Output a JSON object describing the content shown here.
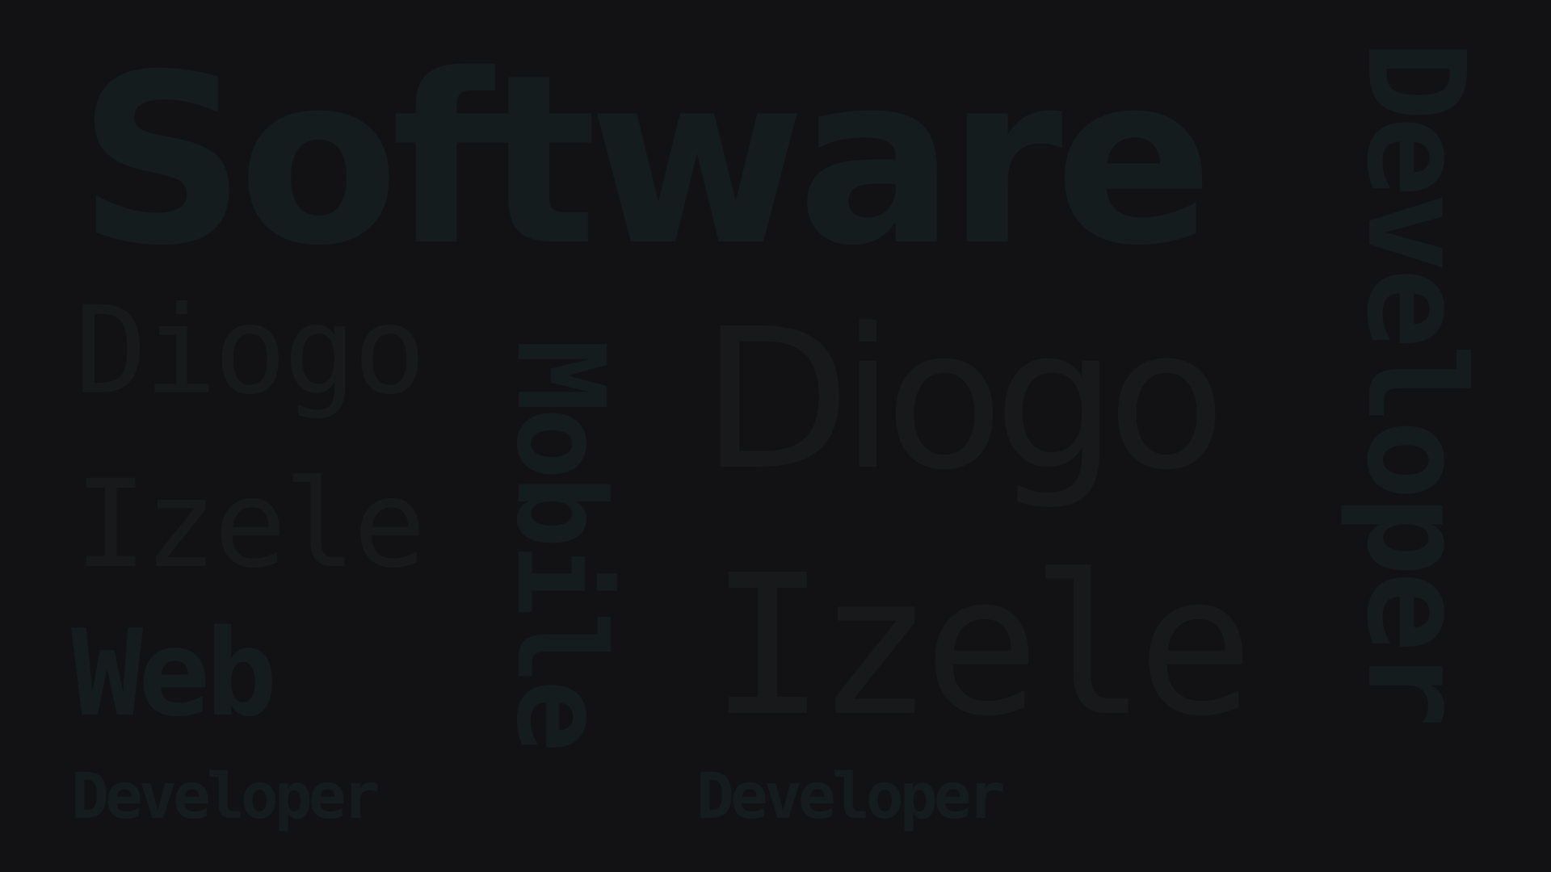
{
  "words": {
    "software": "Software",
    "diogo_small": "Diogo",
    "izele_small": "Izele",
    "web": "Web",
    "developer_left": "Developer",
    "mobile": "Mobile",
    "diogo_big": "Diogo",
    "izele_big": "Izele",
    "developer_right": "Developer",
    "developer_vertical": "Developer"
  },
  "colors": {
    "background": "#121214",
    "teal_text": "#141c1d",
    "grey_text": "#18191b"
  }
}
